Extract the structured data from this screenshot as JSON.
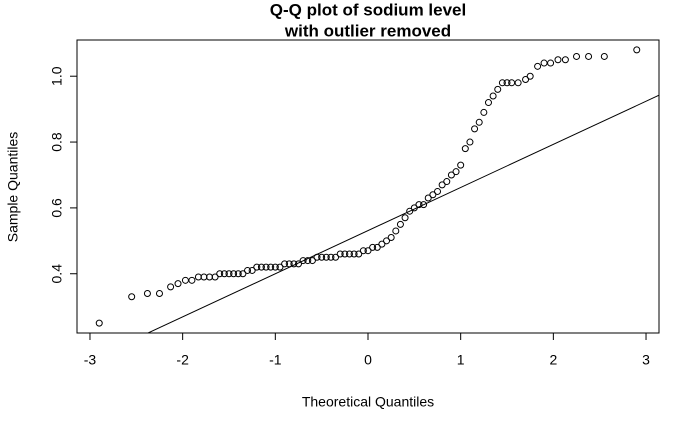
{
  "chart_data": {
    "type": "scatter",
    "title": [
      "Q-Q plot of sodium level",
      "with outlier removed"
    ],
    "x_label": "Theoretical Quantiles",
    "y_label": "Sample Quantiles",
    "xlim": [
      -3.14,
      3.14
    ],
    "ylim": [
      0.22,
      1.11
    ],
    "xticks": [
      -3,
      -2,
      -1,
      0,
      1,
      2,
      3
    ],
    "yticks": [
      0.4,
      0.6,
      0.8,
      {
        "value": 1,
        "label": "1.0"
      }
    ],
    "color": "#000000",
    "reference_line": {
      "intercept": 0.531,
      "slope": 0.131
    },
    "x": [
      -2.9,
      -2.55,
      -2.38,
      -2.25,
      -2.13,
      -2.05,
      -1.97,
      -1.9,
      -1.83,
      -1.77,
      -1.71,
      -1.65,
      -1.6,
      -1.55,
      -1.5,
      -1.45,
      -1.4,
      -1.35,
      -1.3,
      -1.25,
      -1.2,
      -1.15,
      -1.1,
      -1.05,
      -1.0,
      -0.95,
      -0.9,
      -0.85,
      -0.8,
      -0.75,
      -0.7,
      -0.65,
      -0.6,
      -0.55,
      -0.5,
      -0.45,
      -0.4,
      -0.35,
      -0.3,
      -0.25,
      -0.2,
      -0.15,
      -0.1,
      -0.05,
      0.0,
      0.05,
      0.1,
      0.15,
      0.2,
      0.25,
      0.3,
      0.35,
      0.4,
      0.45,
      0.5,
      0.55,
      0.6,
      0.65,
      0.7,
      0.75,
      0.8,
      0.85,
      0.9,
      0.95,
      1.0,
      1.05,
      1.1,
      1.15,
      1.2,
      1.25,
      1.3,
      1.35,
      1.4,
      1.45,
      1.5,
      1.55,
      1.62,
      1.7,
      1.75,
      1.83,
      1.9,
      1.97,
      2.05,
      2.13,
      2.25,
      2.38,
      2.55,
      2.9
    ],
    "y": [
      0.25,
      0.33,
      0.34,
      0.34,
      0.36,
      0.37,
      0.38,
      0.38,
      0.39,
      0.39,
      0.39,
      0.39,
      0.4,
      0.4,
      0.4,
      0.4,
      0.4,
      0.4,
      0.41,
      0.41,
      0.42,
      0.42,
      0.42,
      0.42,
      0.42,
      0.42,
      0.43,
      0.43,
      0.43,
      0.43,
      0.44,
      0.44,
      0.44,
      0.45,
      0.45,
      0.45,
      0.45,
      0.45,
      0.46,
      0.46,
      0.46,
      0.46,
      0.46,
      0.47,
      0.47,
      0.48,
      0.48,
      0.49,
      0.5,
      0.51,
      0.53,
      0.55,
      0.57,
      0.59,
      0.6,
      0.61,
      0.61,
      0.63,
      0.64,
      0.65,
      0.67,
      0.68,
      0.7,
      0.71,
      0.73,
      0.78,
      0.8,
      0.84,
      0.86,
      0.89,
      0.92,
      0.94,
      0.96,
      0.98,
      0.98,
      0.98,
      0.98,
      0.99,
      1.0,
      1.03,
      1.04,
      1.04,
      1.05,
      1.05,
      1.06,
      1.06,
      1.06,
      1.08
    ]
  }
}
